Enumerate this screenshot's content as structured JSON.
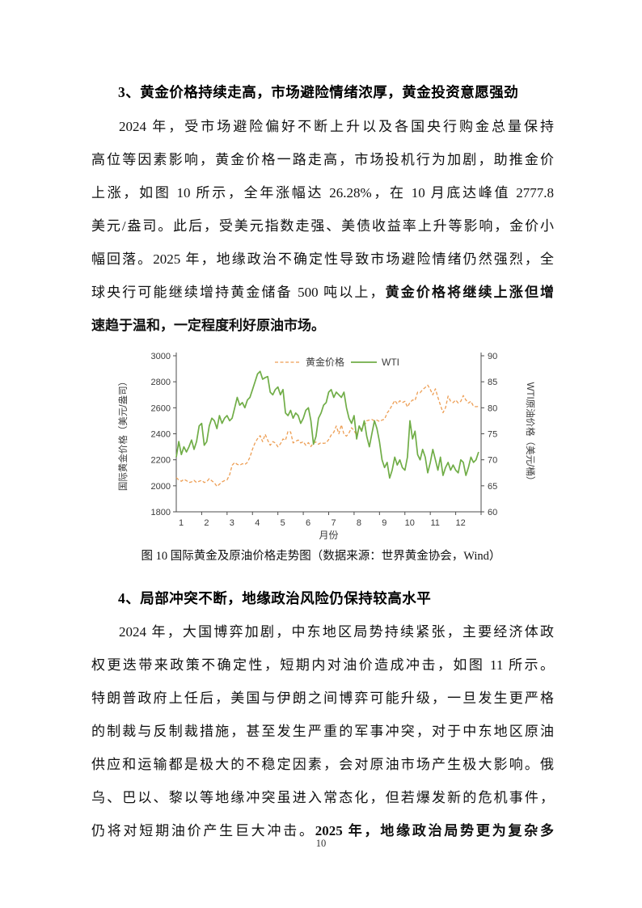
{
  "page": {
    "number": "10"
  },
  "section3": {
    "heading": "3、黄金价格持续走高，市场避险情绪浓厚，黄金投资意愿强劲",
    "lines": [
      {
        "indent": true,
        "last": false,
        "runs": [
          {
            "t": "2024 年，受市场避险偏好不断上升以及各国央行购金总量保持",
            "b": false
          }
        ]
      },
      {
        "indent": false,
        "last": false,
        "runs": [
          {
            "t": "高位等因素影响，黄金价格一路走高，市场投机行为加剧，助推金价",
            "b": false
          }
        ]
      },
      {
        "indent": false,
        "last": false,
        "runs": [
          {
            "t": "上涨，如图 10 所示，全年涨幅达 26.28%，在 10 月底达峰值 2777.8",
            "b": false
          }
        ]
      },
      {
        "indent": false,
        "last": false,
        "runs": [
          {
            "t": "美元/盎司。此后，受美元指数走强、美债收益率上升等影响，金价小",
            "b": false
          }
        ]
      },
      {
        "indent": false,
        "last": false,
        "runs": [
          {
            "t": "幅回落。2025 年，地缘政治不确定性导致市场避险情绪仍然强烈，全",
            "b": false
          }
        ]
      },
      {
        "indent": false,
        "last": false,
        "runs": [
          {
            "t": "球央行可能继续增持黄金储备 500 吨以上，",
            "b": false
          },
          {
            "t": "黄金价格将继续上涨但增",
            "b": true
          }
        ]
      },
      {
        "indent": false,
        "last": true,
        "runs": [
          {
            "t": "速趋于温和，一定程度利好原油市场。",
            "b": true
          }
        ]
      }
    ]
  },
  "figure": {
    "caption": "图 10  国际黄金及原油价格走势图（数据来源：世界黄金协会，Wind）"
  },
  "chart_data": {
    "type": "line",
    "xlabel": "月份",
    "ylabel_left": "国际黄金价格（美元/盎司）",
    "ylabel_right": "WTI原油价格（美元/桶）",
    "x_ticks": [
      "1",
      "2",
      "3",
      "4",
      "5",
      "6",
      "7",
      "8",
      "9",
      "10",
      "11",
      "12"
    ],
    "xlim": [
      1,
      13
    ],
    "ylim_left": [
      1800,
      3000
    ],
    "yticks_left": [
      1800,
      2000,
      2200,
      2400,
      2600,
      2800,
      3000
    ],
    "ylim_right": [
      60,
      90
    ],
    "yticks_right": [
      60,
      65,
      70,
      75,
      80,
      85,
      90
    ],
    "legend": [
      "黄金价格",
      "WTI"
    ],
    "grid": false,
    "legend_position": "top-center",
    "colors": {
      "gold": "#ED9E54",
      "wti": "#70AD47"
    },
    "x_start": 1.0,
    "x_step": 0.1,
    "series": [
      {
        "name": "黄金价格",
        "axis": "left",
        "style": "dashed",
        "values": [
          2063,
          2045,
          2035,
          2050,
          2040,
          2025,
          2030,
          2042,
          2025,
          2035,
          2042,
          2025,
          2032,
          2055,
          2038,
          2024,
          1995,
          2012,
          2030,
          2040,
          2045,
          2085,
          2158,
          2180,
          2165,
          2158,
          2170,
          2163,
          2180,
          2220,
          2282,
          2330,
          2362,
          2386,
          2340,
          2396,
          2350,
          2312,
          2340,
          2330,
          2300,
          2322,
          2360,
          2350,
          2420,
          2414,
          2330,
          2342,
          2352,
          2330,
          2340,
          2312,
          2332,
          2302,
          2330,
          2336,
          2320,
          2332,
          2326,
          2330,
          2356,
          2390,
          2412,
          2460,
          2400,
          2469,
          2396,
          2382,
          2406,
          2446,
          2424,
          2390,
          2455,
          2436,
          2460,
          2500,
          2506,
          2510,
          2500,
          2506,
          2494,
          2506,
          2512,
          2560,
          2586,
          2620,
          2656,
          2630,
          2654,
          2640,
          2650,
          2606,
          2640,
          2660,
          2656,
          2720,
          2716,
          2740,
          2756,
          2774,
          2740,
          2700,
          2746,
          2680,
          2620,
          2562,
          2600,
          2690,
          2650,
          2640,
          2660,
          2636,
          2650,
          2694,
          2660,
          2636,
          2650,
          2612,
          2608,
          2610
        ]
      },
      {
        "name": "WTI",
        "axis": "right",
        "style": "solid",
        "values": [
          70.5,
          73.5,
          71.0,
          72.5,
          71.5,
          72.5,
          73.8,
          72.0,
          73.5,
          76.5,
          77.0,
          72.8,
          73.5,
          76.5,
          78.0,
          77.5,
          76.0,
          78.5,
          77.0,
          78.0,
          78.5,
          77.5,
          78.0,
          80.0,
          82.0,
          80.5,
          81.0,
          80.0,
          81.5,
          82.0,
          83.5,
          85.0,
          86.5,
          87.0,
          85.5,
          85.8,
          86.0,
          83.0,
          82.5,
          83.5,
          84.0,
          82.5,
          83.5,
          79.0,
          78.5,
          79.5,
          78.0,
          79.0,
          78.5,
          77.0,
          78.0,
          79.5,
          80.0,
          77.5,
          73.0,
          74.5,
          78.0,
          79.0,
          80.5,
          81.0,
          83.0,
          83.5,
          82.0,
          83.0,
          82.5,
          82.0,
          83.0,
          80.0,
          78.0,
          77.0,
          78.5,
          74.0,
          76.5,
          75.5,
          77.5,
          74.5,
          72.5,
          75.0,
          77.5,
          76.0,
          73.5,
          70.0,
          68.5,
          69.5,
          66.5,
          68.0,
          70.5,
          69.0,
          70.0,
          68.5,
          68.0,
          70.5,
          77.5,
          74.0,
          75.5,
          71.0,
          70.0,
          72.0,
          70.5,
          67.5,
          69.5,
          72.0,
          70.0,
          68.0,
          70.5,
          67.0,
          68.5,
          69.5,
          68.0,
          69.0,
          68.0,
          67.5,
          70.0,
          69.5,
          67.0,
          68.5,
          70.5,
          69.5,
          70.0,
          71.5
        ]
      }
    ]
  },
  "section4": {
    "heading": "4、局部冲突不断，地缘政治风险仍保持较高水平",
    "lines": [
      {
        "indent": true,
        "last": false,
        "runs": [
          {
            "t": "2024 年，大国博弈加剧，中东地区局势持续紧张，主要经济体政",
            "b": false
          }
        ]
      },
      {
        "indent": false,
        "last": false,
        "runs": [
          {
            "t": "权更迭带来政策不确定性，短期内对油价造成冲击，如图 11 所示。",
            "b": false
          }
        ]
      },
      {
        "indent": false,
        "last": false,
        "runs": [
          {
            "t": "特朗普政府上任后，美国与伊朗之间博弈可能升级，一旦发生更严格",
            "b": false
          }
        ]
      },
      {
        "indent": false,
        "last": false,
        "runs": [
          {
            "t": "的制裁与反制裁措施，甚至发生严重的军事冲突，对于中东地区原油",
            "b": false
          }
        ]
      },
      {
        "indent": false,
        "last": false,
        "runs": [
          {
            "t": "供应和运输都是极大的不稳定因素，会对原油市场产生极大影响。俄",
            "b": false
          }
        ]
      },
      {
        "indent": false,
        "last": false,
        "runs": [
          {
            "t": "乌、巴以、黎以等地缘冲突虽进入常态化，但若爆发新的危机事件，",
            "b": false
          }
        ]
      },
      {
        "indent": false,
        "last": false,
        "runs": [
          {
            "t": "仍将对短期油价产生巨大冲击。",
            "b": false
          },
          {
            "t": "2025 年，地缘政治局势更为复杂多",
            "b": true
          }
        ]
      }
    ]
  }
}
